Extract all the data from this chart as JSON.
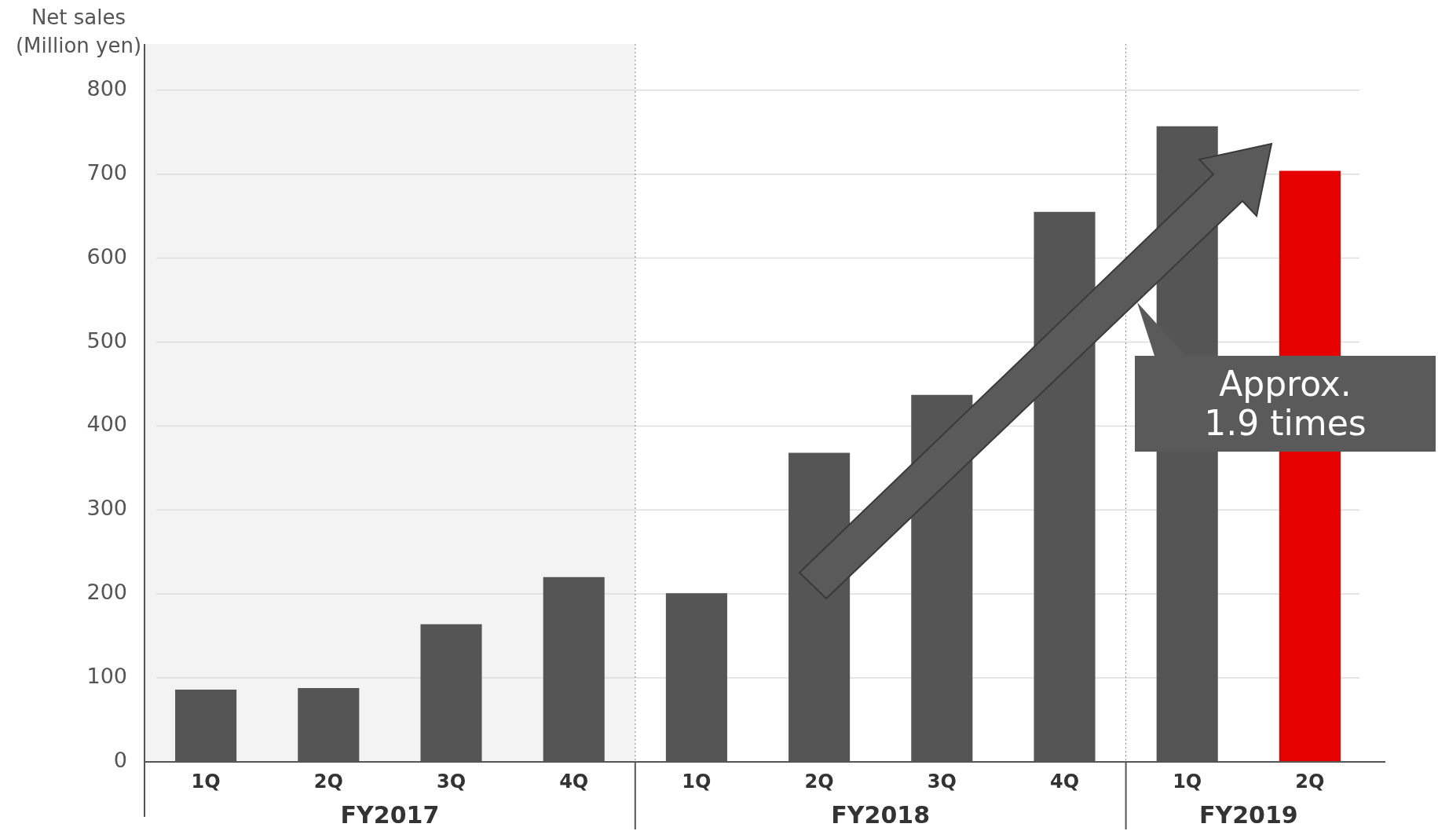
{
  "chart_data": {
    "type": "bar",
    "ylabel": "Net sales\n(Million yen)",
    "categories": [
      "1Q",
      "2Q",
      "3Q",
      "4Q",
      "1Q",
      "2Q",
      "3Q",
      "4Q",
      "1Q",
      "2Q"
    ],
    "values": [
      86,
      88,
      164,
      220,
      201,
      368,
      437,
      655,
      757,
      704
    ],
    "colors": [
      "#555555",
      "#555555",
      "#555555",
      "#555555",
      "#555555",
      "#555555",
      "#555555",
      "#555555",
      "#555555",
      "#e60000"
    ],
    "ylim": [
      0,
      855
    ],
    "yticks": [
      0,
      100,
      200,
      300,
      400,
      500,
      600,
      700,
      800
    ],
    "grid": "y",
    "bands": [
      {
        "axis": "x",
        "from": "1Q",
        "to": "4Q",
        "color": "#f3f3f3"
      }
    ],
    "annotations": [
      "FY2017",
      "FY2018",
      "FY2019",
      "Approx.\n1.9 times"
    ]
  }
}
